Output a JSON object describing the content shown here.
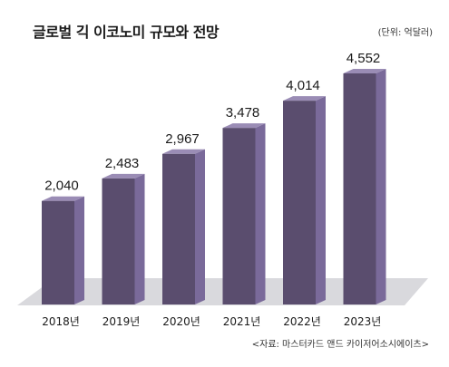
{
  "header": {
    "title": "글로벌 긱 이코노미 규모와 전망",
    "unit": "(단위: 억달러)"
  },
  "footer": {
    "source": "<자료: 마스터카드 앤드 카이저어소시에이츠>"
  },
  "colors": {
    "bar_front": "#5a4d6e",
    "bar_side": "#7a6a9a",
    "bar_top": "#9a8cb5",
    "floor": "#d9d9dd"
  },
  "chart_data": {
    "type": "bar",
    "title": "글로벌 긱 이코노미 규모와 전망",
    "categories": [
      "2018년",
      "2019년",
      "2020년",
      "2021년",
      "2022년",
      "2023년"
    ],
    "values": [
      2040,
      2483,
      2967,
      3478,
      4014,
      4552
    ],
    "value_labels": [
      "2,040",
      "2,483",
      "2,967",
      "3,478",
      "4,014",
      "4,552"
    ],
    "xlabel": "",
    "ylabel": "",
    "ylim": [
      0,
      4552
    ],
    "grid": false,
    "legend": "none"
  }
}
